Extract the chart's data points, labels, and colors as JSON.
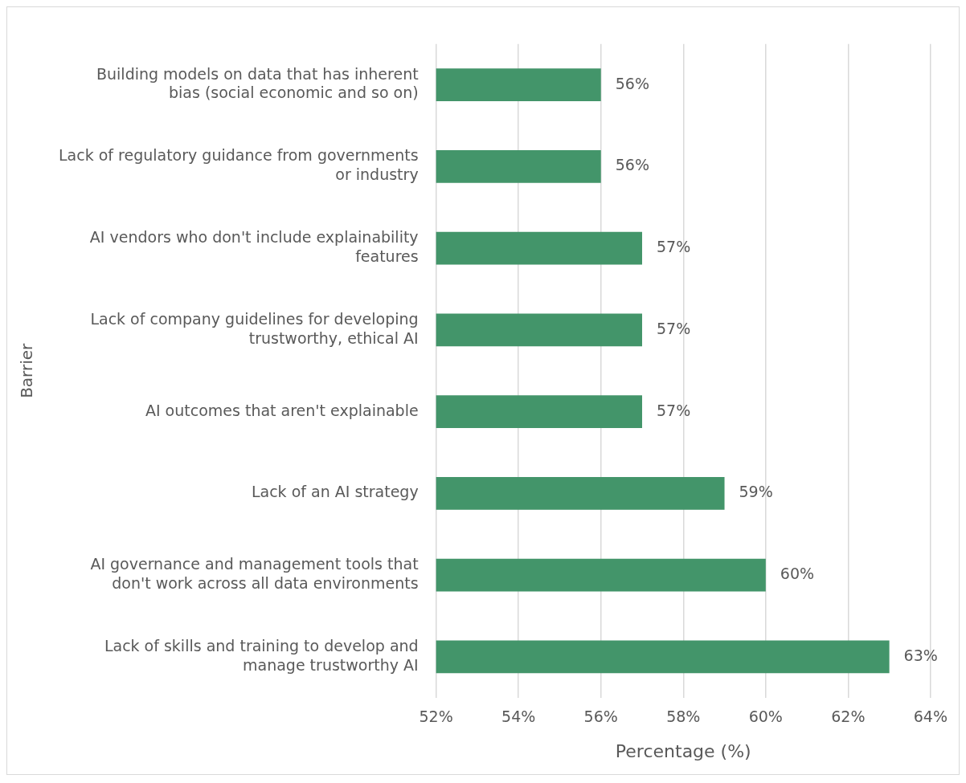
{
  "chart_data": {
    "type": "bar",
    "orientation": "horizontal",
    "categories": [
      "Building models on data that has inherent bias (social economic and so on)",
      "Lack of regulatory guidance from governments or industry",
      "AI vendors who don't include explainability features",
      "Lack of company guidelines for developing trustworthy, ethical AI",
      "AI outcomes that aren't explainable",
      "Lack of an AI strategy",
      "AI governance and management tools that don't work across all data environments",
      "Lack of skills and training to develop and manage trustworthy AI"
    ],
    "values": [
      56,
      56,
      57,
      57,
      57,
      59,
      60,
      63
    ],
    "value_labels": [
      "56%",
      "56%",
      "57%",
      "57%",
      "57%",
      "59%",
      "60%",
      "63%"
    ],
    "color": "#43956a",
    "xlabel": "Percentage (%)",
    "ylabel": "Barrier",
    "xlim": [
      52,
      64
    ],
    "xticks": [
      {
        "value": 52,
        "label": "52%"
      },
      {
        "value": 54,
        "label": "54%"
      },
      {
        "value": 56,
        "label": "56%"
      },
      {
        "value": 58,
        "label": "58%"
      },
      {
        "value": 60,
        "label": "60%"
      },
      {
        "value": 62,
        "label": "62%"
      },
      {
        "value": 64,
        "label": "64%"
      }
    ],
    "grid": "x",
    "legend": false
  }
}
